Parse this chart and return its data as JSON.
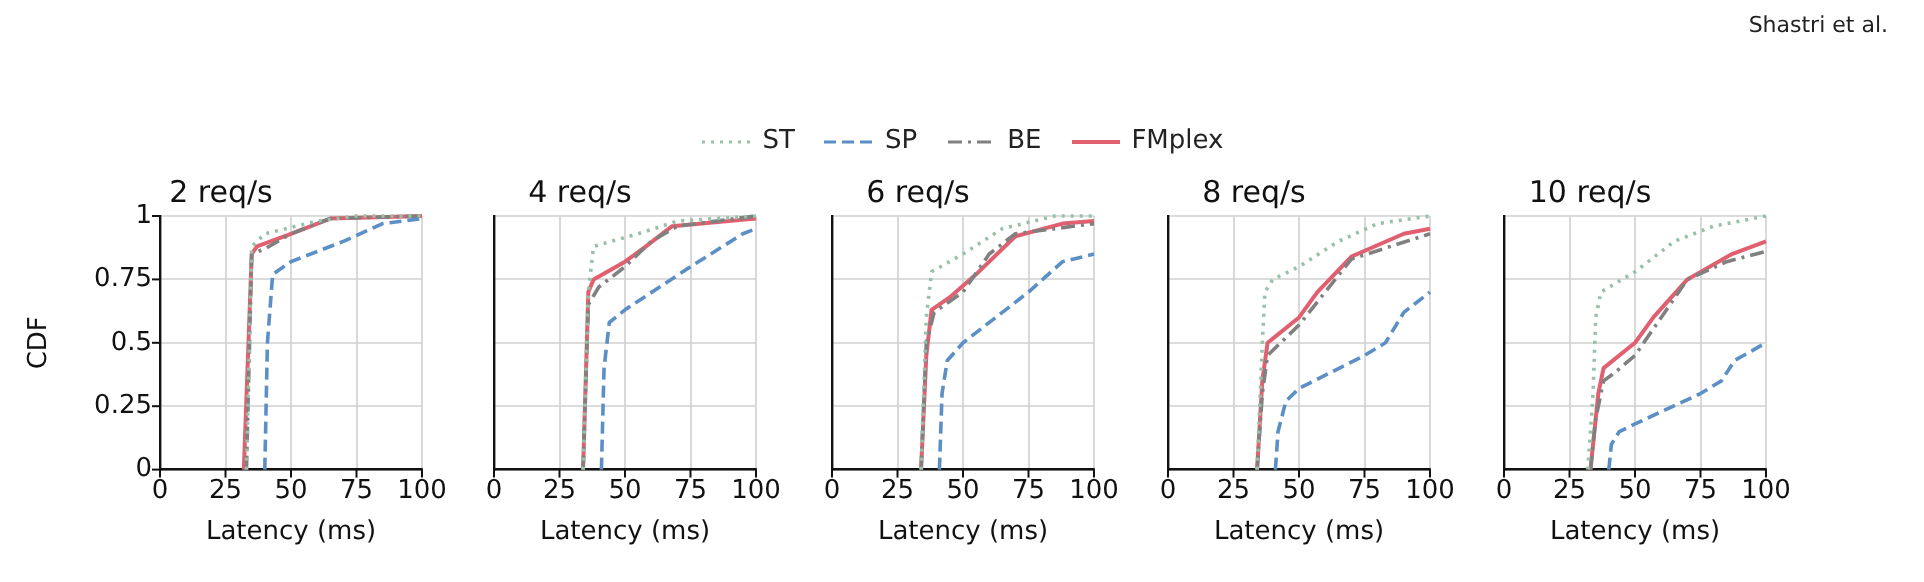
{
  "chart_data": [
    {
      "type": "line",
      "title": "2 req/s",
      "xlabel": "Latency (ms)",
      "ylabel": "CDF",
      "legend": "top",
      "annotations": [
        "Shastri et al."
      ],
      "xlim": [
        0,
        100
      ],
      "xticks": [
        0,
        25,
        50,
        75,
        100
      ],
      "ylim": [
        0,
        1
      ],
      "yticks": [
        0,
        0.25,
        0.5,
        0.75,
        1
      ],
      "grid": true,
      "series": [
        {
          "name": "ST",
          "color": "#99c0a8",
          "line_style": "dotted",
          "x": [
            33,
            35,
            40,
            60,
            75,
            100
          ],
          "values": [
            0,
            0.88,
            0.93,
            0.98,
            1,
            1
          ]
        },
        {
          "name": "SP",
          "color": "#5b8fc6",
          "line_style": "dashed",
          "x": [
            40,
            41,
            43,
            50,
            70,
            85,
            100
          ],
          "values": [
            0,
            0.5,
            0.77,
            0.82,
            0.9,
            0.97,
            0.99
          ]
        },
        {
          "name": "BE",
          "color": "#808080",
          "line_style": "dashdot",
          "x": [
            33,
            35,
            40,
            50,
            65,
            100
          ],
          "values": [
            0,
            0.85,
            0.87,
            0.93,
            0.99,
            1
          ]
        },
        {
          "name": "FMplex",
          "color": "#e06070",
          "line_style": "solid",
          "x": [
            32,
            35,
            37,
            50,
            65,
            100
          ],
          "values": [
            0,
            0.85,
            0.88,
            0.93,
            0.99,
            1
          ]
        }
      ]
    },
    {
      "type": "line",
      "title": "4 req/s",
      "xlabel": "Latency (ms)",
      "tick_labels": "x",
      "xlim": [
        0,
        100
      ],
      "xticks": [
        0,
        25,
        50,
        75,
        100
      ],
      "ylim": [
        0,
        1
      ],
      "yticks": [
        0,
        0.25,
        0.5,
        0.75,
        1
      ],
      "grid": true,
      "series": [
        {
          "color": "#99c0a8",
          "line_style": "dotted",
          "x": [
            34,
            36,
            38,
            55,
            70,
            100
          ],
          "values": [
            0,
            0.7,
            0.88,
            0.93,
            0.98,
            1
          ]
        },
        {
          "color": "#5b8fc6",
          "line_style": "dashed",
          "x": [
            41,
            42,
            44,
            50,
            75,
            95,
            100
          ],
          "values": [
            0,
            0.4,
            0.58,
            0.63,
            0.8,
            0.93,
            0.95
          ]
        },
        {
          "color": "#808080",
          "line_style": "dashdot",
          "x": [
            34,
            36,
            40,
            50,
            60,
            70,
            100
          ],
          "values": [
            0,
            0.65,
            0.72,
            0.8,
            0.9,
            0.96,
            1
          ]
        },
        {
          "color": "#e06070",
          "line_style": "solid",
          "x": [
            34,
            36,
            38,
            50,
            58,
            68,
            100
          ],
          "values": [
            0,
            0.7,
            0.75,
            0.82,
            0.88,
            0.96,
            0.99
          ]
        }
      ]
    },
    {
      "type": "line",
      "title": "6 req/s",
      "xlabel": "Latency (ms)",
      "tick_labels": "x",
      "xlim": [
        0,
        100
      ],
      "xticks": [
        0,
        25,
        50,
        75,
        100
      ],
      "ylim": [
        0,
        1
      ],
      "yticks": [
        0,
        0.25,
        0.5,
        0.75,
        1
      ],
      "grid": true,
      "series": [
        {
          "color": "#99c0a8",
          "line_style": "dotted",
          "x": [
            34,
            36,
            38,
            50,
            65,
            85,
            100
          ],
          "values": [
            0,
            0.6,
            0.78,
            0.85,
            0.95,
            1,
            1
          ]
        },
        {
          "color": "#5b8fc6",
          "line_style": "dashed",
          "x": [
            41,
            42,
            44,
            50,
            75,
            88,
            100
          ],
          "values": [
            0,
            0.3,
            0.43,
            0.5,
            0.7,
            0.82,
            0.85
          ]
        },
        {
          "color": "#808080",
          "line_style": "dashdot",
          "x": [
            34,
            36,
            39,
            50,
            60,
            70,
            100
          ],
          "values": [
            0,
            0.5,
            0.62,
            0.7,
            0.85,
            0.93,
            0.97
          ]
        },
        {
          "color": "#e06070",
          "line_style": "solid",
          "x": [
            34,
            36,
            38,
            45,
            55,
            70,
            88,
            100
          ],
          "values": [
            0,
            0.45,
            0.63,
            0.68,
            0.77,
            0.92,
            0.97,
            0.98
          ]
        }
      ]
    },
    {
      "type": "line",
      "title": "8 req/s",
      "xlabel": "Latency (ms)",
      "tick_labels": "x",
      "xlim": [
        0,
        100
      ],
      "xticks": [
        0,
        25,
        50,
        75,
        100
      ],
      "ylim": [
        0,
        1
      ],
      "yticks": [
        0,
        0.25,
        0.5,
        0.75,
        1
      ],
      "grid": true,
      "series": [
        {
          "color": "#99c0a8",
          "line_style": "dotted",
          "x": [
            34,
            36,
            37,
            40,
            50,
            65,
            80,
            100
          ],
          "values": [
            0,
            0.5,
            0.7,
            0.75,
            0.8,
            0.9,
            0.97,
            1
          ]
        },
        {
          "color": "#5b8fc6",
          "line_style": "dashed",
          "x": [
            41,
            42,
            45,
            50,
            75,
            83,
            90,
            100
          ],
          "values": [
            0,
            0.15,
            0.27,
            0.32,
            0.45,
            0.5,
            0.62,
            0.7
          ]
        },
        {
          "color": "#808080",
          "line_style": "dashdot",
          "x": [
            34,
            36,
            38,
            50,
            60,
            70,
            100
          ],
          "values": [
            0,
            0.3,
            0.45,
            0.57,
            0.7,
            0.83,
            0.93
          ]
        },
        {
          "color": "#e06070",
          "line_style": "solid",
          "x": [
            34,
            36,
            38,
            50,
            57,
            70,
            90,
            100
          ],
          "values": [
            0,
            0.35,
            0.5,
            0.6,
            0.7,
            0.84,
            0.93,
            0.95
          ]
        }
      ]
    },
    {
      "type": "line",
      "title": "10 req/s",
      "xlabel": "Latency (ms)",
      "tick_labels": "x",
      "xlim": [
        0,
        100
      ],
      "xticks": [
        0,
        25,
        50,
        75,
        100
      ],
      "ylim": [
        0,
        1
      ],
      "yticks": [
        0,
        0.25,
        0.5,
        0.75,
        1
      ],
      "grid": true,
      "series": [
        {
          "color": "#99c0a8",
          "line_style": "dotted",
          "x": [
            32,
            34,
            35,
            37,
            50,
            65,
            80,
            100
          ],
          "values": [
            0,
            0.3,
            0.6,
            0.7,
            0.78,
            0.9,
            0.96,
            1
          ]
        },
        {
          "color": "#5b8fc6",
          "line_style": "dashed",
          "x": [
            40,
            41,
            44,
            50,
            75,
            83,
            88,
            100
          ],
          "values": [
            0,
            0.1,
            0.15,
            0.18,
            0.3,
            0.35,
            0.43,
            0.5
          ]
        },
        {
          "color": "#808080",
          "line_style": "dashdot",
          "x": [
            33,
            35,
            38,
            42,
            50,
            60,
            70,
            85,
            100
          ],
          "values": [
            0,
            0.2,
            0.35,
            0.38,
            0.45,
            0.6,
            0.75,
            0.82,
            0.86
          ]
        },
        {
          "color": "#e06070",
          "line_style": "solid",
          "x": [
            33,
            35,
            36,
            38,
            50,
            57,
            70,
            87,
            100
          ],
          "values": [
            0,
            0.2,
            0.3,
            0.4,
            0.5,
            0.6,
            0.75,
            0.85,
            0.9
          ]
        }
      ]
    }
  ]
}
